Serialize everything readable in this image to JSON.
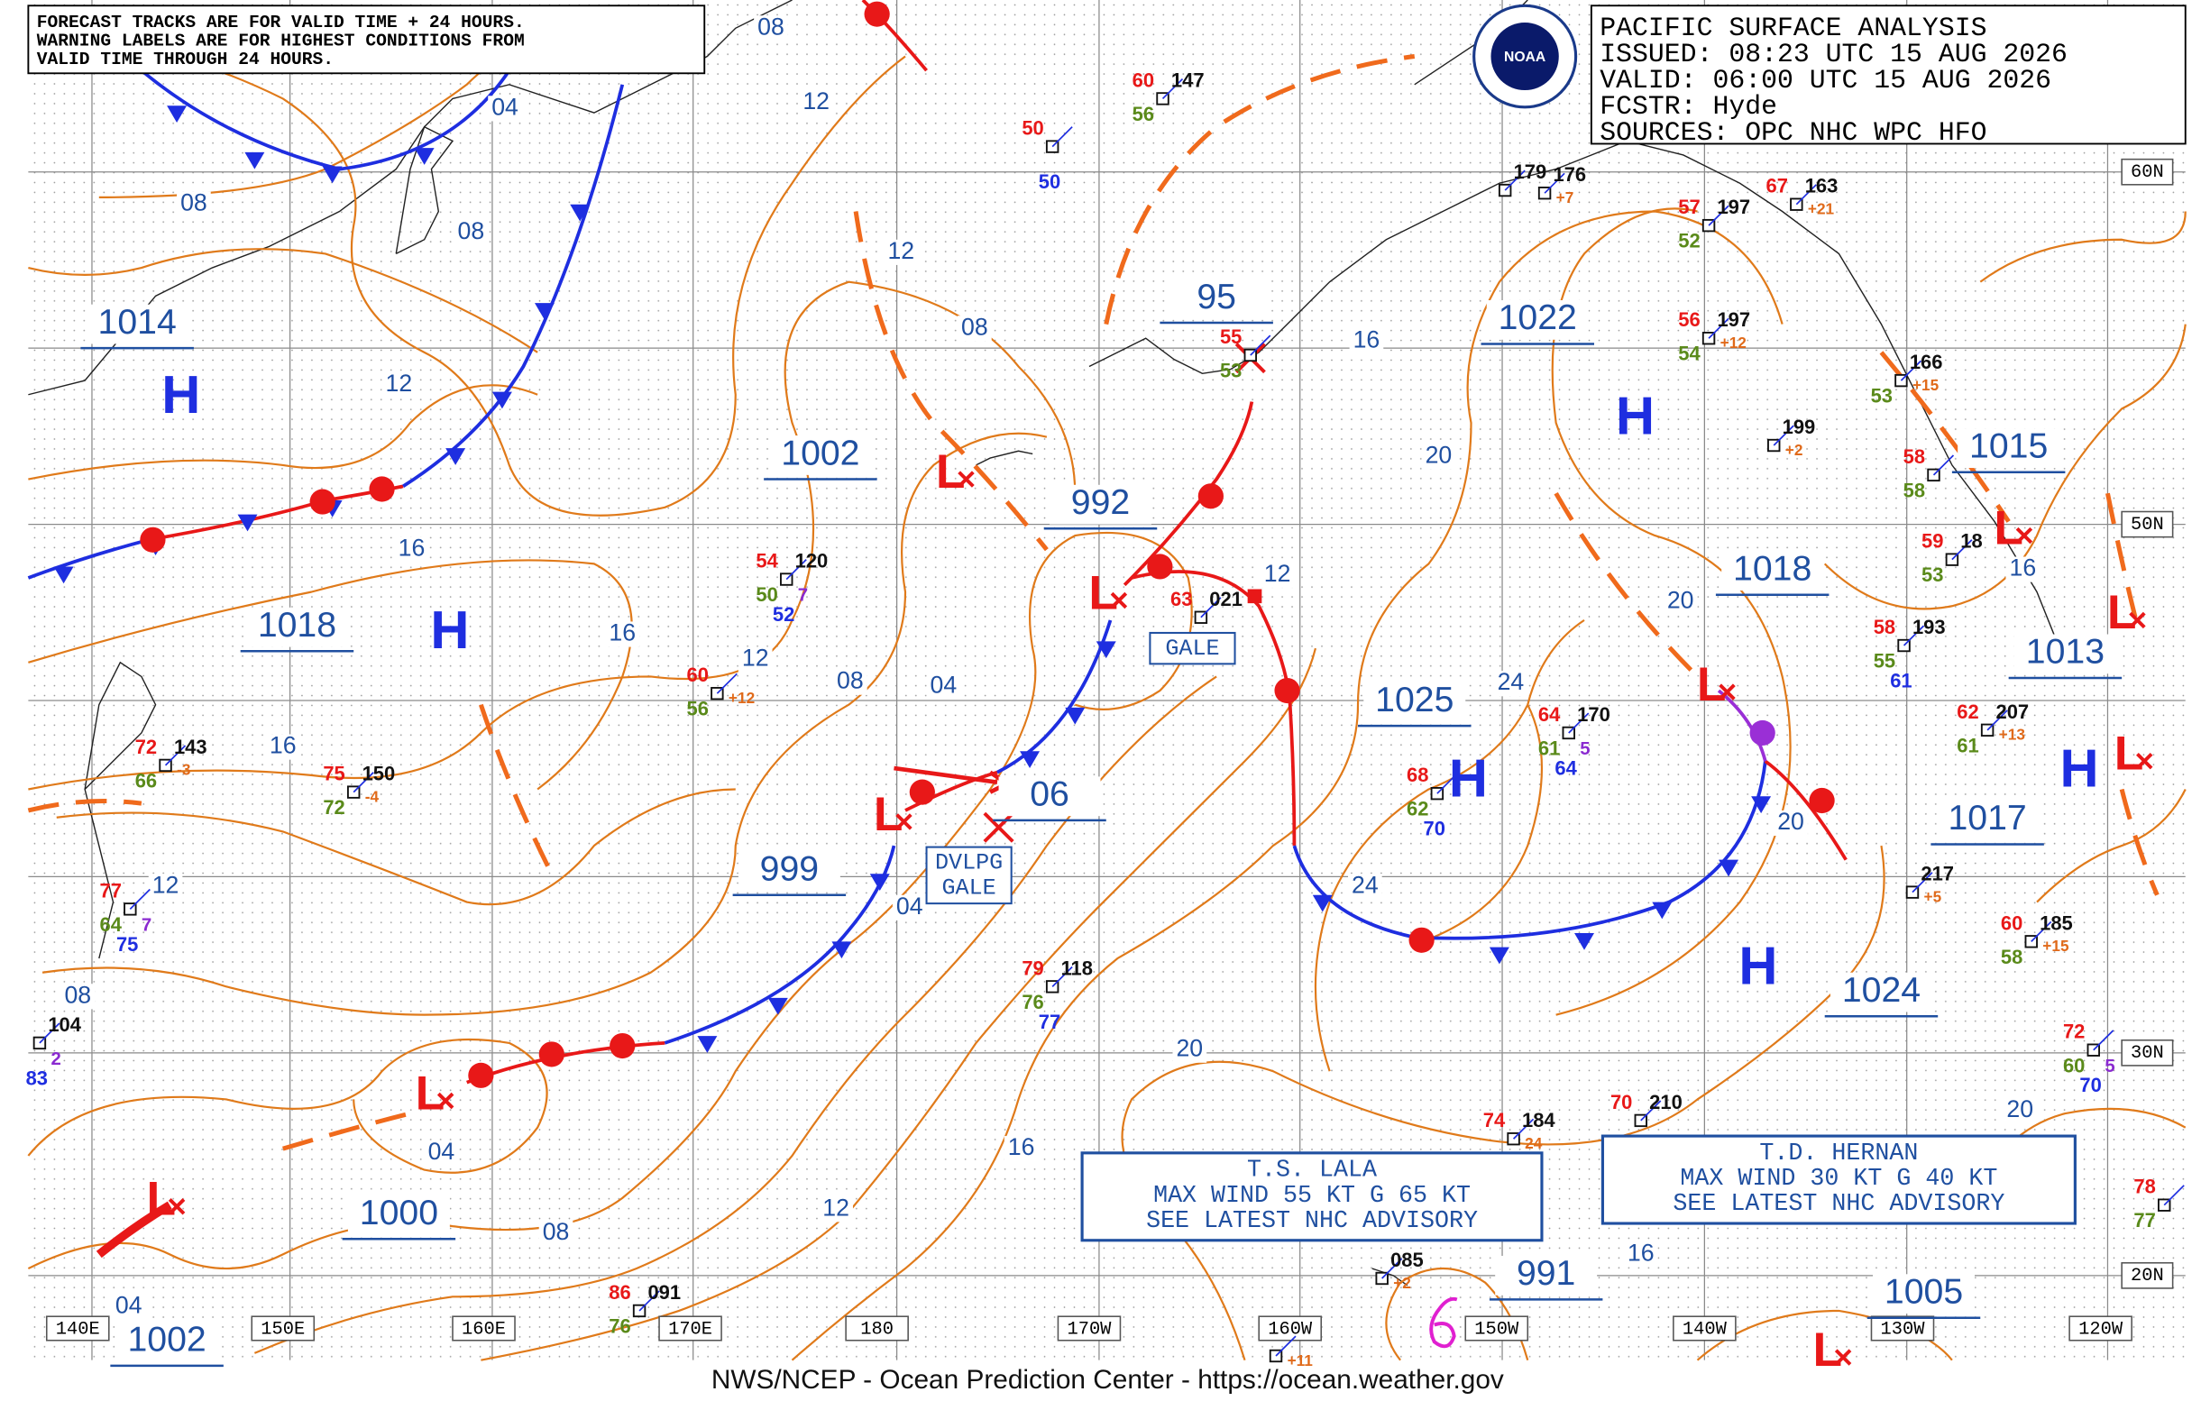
{
  "warning_box": {
    "lines": [
      "FORECAST TRACKS ARE FOR VALID TIME + 24 HOURS.",
      "WARNING LABELS ARE FOR HIGHEST CONDITIONS FROM",
      "VALID TIME THROUGH 24 HOURS."
    ]
  },
  "header": {
    "lines": [
      "PACIFIC SURFACE ANALYSIS",
      "ISSUED: 08:23 UTC 15 AUG 2026",
      "VALID:  06:00 UTC 15 AUG 2026",
      "FCSTR:  Hyde",
      "SOURCES: OPC NHC WPC HFO"
    ]
  },
  "logo": {
    "text": "NOAA"
  },
  "footer": "NWS/NCEP - Ocean Prediction Center - https://ocean.weather.gov",
  "lat_labels": [
    "60N",
    "50N",
    "30N",
    "20N"
  ],
  "lon_labels": [
    "140E",
    "150E",
    "160E",
    "170E",
    "180",
    "170W",
    "160W",
    "150W",
    "140W",
    "130W",
    "120W"
  ],
  "pressure_labels": [
    "1014",
    "1018",
    "1002",
    "992",
    "95",
    "1022",
    "1015",
    "1018",
    "1013",
    "1025",
    "06",
    "1017",
    "999",
    "1024",
    "1000",
    "991",
    "1005",
    "1002"
  ],
  "highs": [
    "H",
    "H",
    "H",
    "H",
    "H",
    "H"
  ],
  "lows": [
    "L",
    "L",
    "L",
    "L",
    "L",
    "L",
    "L",
    "L",
    "L",
    "L"
  ],
  "isobar_labels": [
    "08",
    "04",
    "12",
    "08",
    "08",
    "12",
    "08",
    "12",
    "16",
    "20",
    "16",
    "12",
    "16",
    "20",
    "16",
    "12",
    "08",
    "04",
    "24",
    "16",
    "20",
    "12",
    "24",
    "04",
    "08",
    "20",
    "20",
    "04",
    "16",
    "12",
    "08",
    "16",
    "04"
  ],
  "warnings": [
    {
      "lines": [
        "GALE"
      ]
    },
    {
      "lines": [
        "DVLPG",
        "GALE"
      ]
    }
  ],
  "advisories": [
    {
      "lines": [
        "T.S. LALA",
        "MAX WIND 55 KT G 65 KT",
        "SEE LATEST NHC ADVISORY"
      ]
    },
    {
      "lines": [
        "T.D. HERNAN",
        "MAX WIND 30 KT G 40 KT",
        "SEE LATEST NHC ADVISORY"
      ]
    }
  ],
  "stations": [
    {
      "t": "72",
      "p": "143",
      "d": "66",
      "c": "-3"
    },
    {
      "t": "75",
      "p": "150",
      "d": "72",
      "c": "-4"
    },
    {
      "t": "60",
      "d": "56",
      "c": "+12"
    },
    {
      "t": "54",
      "p": "120",
      "d": "50",
      "w": "52",
      "x": "7"
    },
    {
      "t": "77",
      "d": "64",
      "w": "75",
      "x": "7"
    },
    {
      "p": "104",
      "w": "83",
      "x": "2"
    },
    {
      "t": "50",
      "w": "50"
    },
    {
      "t": "60",
      "p": "147",
      "d": "56"
    },
    {
      "t": "63",
      "p": "021"
    },
    {
      "t": "55",
      "d": "53"
    },
    {
      "t": "79",
      "p": "118",
      "d": "76",
      "w": "77"
    },
    {
      "t": "68",
      "d": "62",
      "w": "70"
    },
    {
      "t": "64",
      "p": "170",
      "d": "61",
      "w": "64",
      "x": "5"
    },
    {
      "p": "179"
    },
    {
      "p": "176",
      "c": "+7"
    },
    {
      "t": "57",
      "p": "197",
      "d": "52"
    },
    {
      "t": "67",
      "p": "163",
      "c": "+21"
    },
    {
      "t": "56",
      "p": "197",
      "d": "54",
      "c": "+12"
    },
    {
      "p": "199",
      "c": "+2"
    },
    {
      "t": "58",
      "p": "193",
      "d": "55",
      "w": "61"
    },
    {
      "p": "166",
      "c": "+15",
      "d": "53"
    },
    {
      "t": "58",
      "d": "58"
    },
    {
      "t": "59",
      "p": "18",
      "d": "53"
    },
    {
      "t": "62",
      "p": "207",
      "d": "61",
      "c": "+13"
    },
    {
      "p": "217",
      "c": "+5"
    },
    {
      "t": "60",
      "p": "185",
      "d": "58",
      "c": "+15"
    },
    {
      "t": "72",
      "d": "60",
      "w": "70",
      "x": "5"
    },
    {
      "t": "74",
      "p": "184",
      "c": "24"
    },
    {
      "t": "70",
      "p": "210"
    },
    {
      "p": "085",
      "c": "+2"
    },
    {
      "t": "86",
      "p": "091",
      "d": "76"
    },
    {
      "c": "+11"
    },
    {
      "t": "78",
      "d": "77"
    }
  ]
}
